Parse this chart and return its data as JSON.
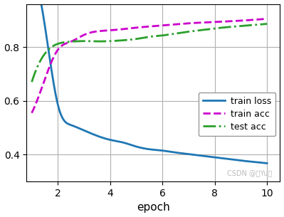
{
  "xlim": [
    0.8,
    10.5
  ],
  "ylim": [
    0.3,
    0.96
  ],
  "xlabel": "epoch",
  "xticks": [
    2,
    4,
    6,
    8,
    10
  ],
  "yticks": [
    0.4,
    0.6,
    0.8
  ],
  "legend_labels": [
    "train loss",
    "train acc",
    "test acc"
  ],
  "train_loss_color": "#1f77b4",
  "train_acc_color": "#cc00cc",
  "test_acc_color": "#2ca02c",
  "background_color": "#ffffff",
  "grid_color": "#b0b0b0",
  "watermark": "CSDN @是Yu欻",
  "watermark_color": "#bbbbbb",
  "train_loss_x": [
    1,
    1.5,
    2,
    2.5,
    3,
    3.5,
    4,
    4.5,
    5,
    5.5,
    6,
    6.5,
    7,
    7.5,
    8,
    8.5,
    9,
    9.5,
    10
  ],
  "train_loss_y": [
    1.05,
    0.88,
    0.585,
    0.51,
    0.49,
    0.47,
    0.455,
    0.445,
    0.43,
    0.42,
    0.415,
    0.408,
    0.402,
    0.396,
    0.39,
    0.384,
    0.378,
    0.373,
    0.368
  ],
  "train_acc_x": [
    1,
    1.5,
    2,
    2.5,
    3,
    4,
    5,
    6,
    7,
    8,
    9,
    10
  ],
  "train_acc_y": [
    0.555,
    0.68,
    0.79,
    0.82,
    0.845,
    0.862,
    0.872,
    0.88,
    0.888,
    0.893,
    0.898,
    0.905
  ],
  "test_acc_x": [
    1,
    1.5,
    2,
    2.5,
    3,
    3.5,
    4,
    4.5,
    5,
    5.5,
    6,
    6.5,
    7,
    7.5,
    8,
    8.5,
    9,
    9.5,
    10
  ],
  "test_acc_y": [
    0.67,
    0.775,
    0.812,
    0.82,
    0.822,
    0.821,
    0.822,
    0.825,
    0.83,
    0.838,
    0.843,
    0.85,
    0.857,
    0.863,
    0.869,
    0.874,
    0.878,
    0.882,
    0.886
  ]
}
